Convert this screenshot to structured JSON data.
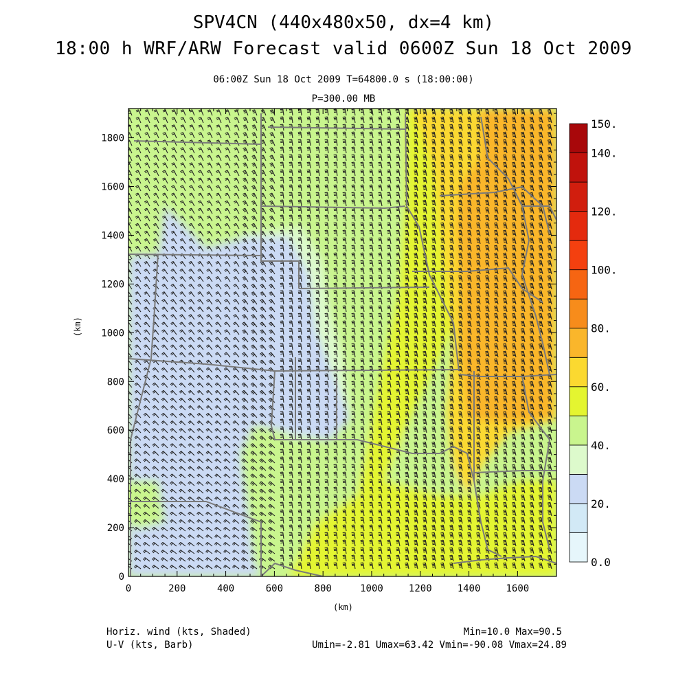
{
  "title_line1": "SPV4CN (440x480x50, dx=4 km)",
  "title_line2": "18:00 h WRF/ARW Forecast valid 0600Z Sun 18 Oct 2009",
  "subtitle_line1": "06:00Z Sun 18 Oct 2009     T=64800.0 s (18:00:00)",
  "subtitle_line2": "P=300.00 MB",
  "x_axis": {
    "label": "(km)",
    "ticks": [
      "0",
      "200",
      "400",
      "600",
      "800",
      "1000",
      "1200",
      "1400",
      "1600"
    ],
    "range": [
      0,
      1760
    ]
  },
  "y_axis": {
    "label": "(km)",
    "ticks": [
      "0",
      "200",
      "400",
      "600",
      "800",
      "1000",
      "1200",
      "1400",
      "1600",
      "1800"
    ],
    "range": [
      0,
      1920
    ]
  },
  "colorbar": {
    "labels": [
      "0.0",
      "20.",
      "40.",
      "60.",
      "80.",
      "100.",
      "120.",
      "140.",
      "150."
    ],
    "levels": [
      0,
      10,
      20,
      30,
      40,
      50,
      60,
      70,
      80,
      90,
      100,
      110,
      120,
      130,
      140,
      150
    ],
    "colors": [
      "#e6f6fb",
      "#d2e9f6",
      "#cbdaf4",
      "#ddfacc",
      "#c9f58e",
      "#e4f530",
      "#fbd930",
      "#fab62b",
      "#f78c1b",
      "#f66512",
      "#f4400f",
      "#e42a0e",
      "#d11e0e",
      "#c0120c",
      "#a8080a"
    ]
  },
  "footer": {
    "left_line1": "Horiz. wind (kts, Shaded)",
    "left_line2": "U-V (kts, Barb)",
    "right_line1": "Min=10.0 Max=90.5",
    "right_line2": "Umin=-2.81 Umax=63.42 Vmin=-90.08 Vmax=24.89"
  },
  "field_stats": {
    "min": 10.0,
    "max": 90.5,
    "umin": -2.81,
    "umax": 63.42,
    "vmin": -90.08,
    "vmax": 24.89
  },
  "shading_colors": {
    "lavender": "#cbdaf4",
    "lightgreen": "#ddfacc",
    "green": "#c9f58e",
    "yellowgreen": "#e4f530",
    "yellow": "#fbd930",
    "orange": "#fab62b",
    "boundary": "#7a7a7a"
  }
}
